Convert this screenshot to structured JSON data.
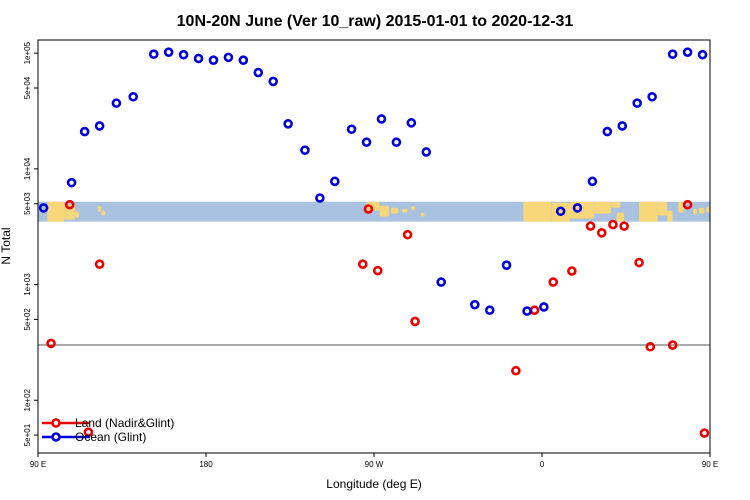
{
  "chart_data": {
    "type": "scatter",
    "title": "10N-20N June (Ver 10_raw)   2015-01-01 to 2020-12-31",
    "xlabel": "Longitude (deg E)",
    "ylabel": "N Total",
    "x_scale": "linear",
    "y_scale": "log",
    "xlim": [
      90,
      450
    ],
    "ylim": [
      35,
      130000
    ],
    "x_ticks": [
      {
        "value": 90,
        "label": "90 E"
      },
      {
        "value": 180,
        "label": "180"
      },
      {
        "value": 270,
        "label": "90 W"
      },
      {
        "value": 360,
        "label": "0"
      },
      {
        "value": 450,
        "label": "90 E"
      },
      {
        "value": 540,
        "label": "180"
      }
    ],
    "y_ticks": [
      {
        "value": 50,
        "label": "5e+01"
      },
      {
        "value": 100,
        "label": "1e+02"
      },
      {
        "value": 500,
        "label": "5e+02"
      },
      {
        "value": 1000,
        "label": "1e+03"
      },
      {
        "value": 5000,
        "label": "5e+03"
      },
      {
        "value": 10000,
        "label": "1e+04"
      },
      {
        "value": 50000,
        "label": "5e+04"
      },
      {
        "value": 100000,
        "label": "1e+05"
      }
    ],
    "hline": 300,
    "map_strip": {
      "ymin": 3500,
      "ymax": 5200,
      "ocean_color": "#a9c2e0",
      "land_color": "#f7d77a"
    },
    "legend": {
      "position": "bottom-left"
    },
    "series": [
      {
        "name": "Land (Nadir&Glint)",
        "color": "#ee0000",
        "points": [
          [
            97,
            310
          ],
          [
            107,
            4900
          ],
          [
            117,
            53
          ],
          [
            123,
            1500
          ],
          [
            264,
            1500
          ],
          [
            267,
            4500
          ],
          [
            272,
            1320
          ],
          [
            288,
            2700
          ],
          [
            292,
            480
          ],
          [
            346,
            180
          ],
          [
            356,
            600
          ],
          [
            366,
            1050
          ],
          [
            376,
            1310
          ],
          [
            386,
            3200
          ],
          [
            392,
            2800
          ],
          [
            398,
            3300
          ],
          [
            404,
            3200
          ],
          [
            412,
            1550
          ],
          [
            418,
            290
          ],
          [
            430,
            300
          ],
          [
            438,
            4900
          ],
          [
            447,
            52
          ],
          [
            455,
            1500
          ]
        ]
      },
      {
        "name": "Ocean (Glint)",
        "color": "#0000dd",
        "points": [
          [
            93,
            4600
          ],
          [
            108,
            7600
          ],
          [
            115,
            21000
          ],
          [
            123,
            23500
          ],
          [
            132,
            37000
          ],
          [
            141,
            42000
          ],
          [
            152,
            98000
          ],
          [
            160,
            102000
          ],
          [
            168,
            97000
          ],
          [
            176,
            90000
          ],
          [
            184,
            87000
          ],
          [
            192,
            92000
          ],
          [
            200,
            87000
          ],
          [
            208,
            68000
          ],
          [
            216,
            57000
          ],
          [
            224,
            24500
          ],
          [
            233,
            14500
          ],
          [
            241,
            5600
          ],
          [
            249,
            7800
          ],
          [
            258,
            22000
          ],
          [
            266,
            17000
          ],
          [
            274,
            27000
          ],
          [
            282,
            17000
          ],
          [
            290,
            25000
          ],
          [
            298,
            14000
          ],
          [
            306,
            1050
          ],
          [
            324,
            670
          ],
          [
            332,
            600
          ],
          [
            341,
            1470
          ],
          [
            352,
            590
          ],
          [
            361,
            640
          ],
          [
            370,
            4300
          ],
          [
            379,
            4600
          ],
          [
            387,
            7800
          ],
          [
            395,
            21000
          ],
          [
            403,
            23500
          ],
          [
            411,
            37000
          ],
          [
            419,
            42000
          ],
          [
            430,
            98000
          ],
          [
            438,
            102000
          ],
          [
            446,
            97000
          ]
        ]
      }
    ]
  }
}
